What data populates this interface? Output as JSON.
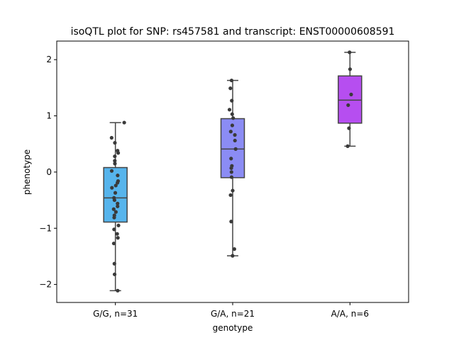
{
  "chart_data": {
    "type": "box",
    "title": "isoQTL plot for SNP: rs457581 and transcript: ENST00000608591",
    "xlabel": "genotype",
    "ylabel": "phenotype",
    "ylim": [
      -2.32,
      2.33
    ],
    "yticks": [
      -2,
      -1,
      0,
      1,
      2
    ],
    "ytick_labels": [
      "−2",
      "−1",
      "0",
      "1",
      "2"
    ],
    "grid": false,
    "groups": [
      {
        "label": "G/G, n=31",
        "color": "#56b4ec",
        "box": {
          "whisker_low": -2.11,
          "q1": -0.89,
          "median": -0.46,
          "q3": 0.08,
          "whisker_high": 0.88
        },
        "points": [
          [
            0.88,
            0.89
          ],
          [
            0.61,
            -0.38
          ],
          [
            0.52,
            -0.05
          ],
          [
            0.38,
            0.22
          ],
          [
            0.34,
            0.28
          ],
          [
            0.28,
            -0.06
          ],
          [
            0.2,
            -0.06
          ],
          [
            0.15,
            -0.05
          ],
          [
            0.02,
            -0.37
          ],
          [
            -0.06,
            0.23
          ],
          [
            -0.16,
            0.27
          ],
          [
            -0.19,
            0.21
          ],
          [
            -0.24,
            0.04
          ],
          [
            -0.28,
            -0.35
          ],
          [
            -0.37,
            -0.01
          ],
          [
            -0.46,
            -0.14
          ],
          [
            -0.5,
            -0.09
          ],
          [
            -0.56,
            0.22
          ],
          [
            -0.61,
            0.22
          ],
          [
            -0.66,
            -0.17
          ],
          [
            -0.71,
            0.05
          ],
          [
            -0.77,
            -0.1
          ],
          [
            -0.81,
            -0.12
          ],
          [
            -0.95,
            0.31
          ],
          [
            -1.02,
            -0.13
          ],
          [
            -1.1,
            0.18
          ],
          [
            -1.17,
            0.25
          ],
          [
            -1.27,
            -0.16
          ],
          [
            -1.63,
            -0.1
          ],
          [
            -1.82,
            -0.08
          ],
          [
            -2.11,
            0.23
          ]
        ]
      },
      {
        "label": "G/A, n=21",
        "color": "#8b8cf4",
        "box": {
          "whisker_low": -1.49,
          "q1": -0.1,
          "median": 0.41,
          "q3": 0.95,
          "whisker_high": 1.63
        },
        "points": [
          [
            1.63,
            -0.11
          ],
          [
            1.49,
            -0.23
          ],
          [
            1.27,
            -0.09
          ],
          [
            1.11,
            -0.32
          ],
          [
            1.03,
            -0.05
          ],
          [
            0.96,
            0.05
          ],
          [
            0.83,
            -0.04
          ],
          [
            0.72,
            -0.19
          ],
          [
            0.66,
            0.22
          ],
          [
            0.56,
            0.23
          ],
          [
            0.41,
            0.3
          ],
          [
            0.24,
            -0.16
          ],
          [
            0.11,
            -0.08
          ],
          [
            0.07,
            -0.14
          ],
          [
            -0.09,
            -0.11
          ],
          [
            -0.33,
            0.0
          ],
          [
            -0.41,
            -0.21
          ],
          [
            -0.88,
            -0.15
          ],
          [
            -1.37,
            0.17
          ],
          [
            -1.49,
            -0.01
          ],
          [
            0.0,
            -0.12
          ]
        ]
      },
      {
        "label": "A/A, n=6",
        "color": "#b64ef0",
        "box": {
          "whisker_low": 0.46,
          "q1": 0.87,
          "median": 1.28,
          "q3": 1.71,
          "whisker_high": 2.13
        },
        "points": [
          [
            2.13,
            -0.04
          ],
          [
            1.83,
            0.01
          ],
          [
            1.38,
            0.12
          ],
          [
            1.19,
            -0.18
          ],
          [
            0.78,
            -0.1
          ],
          [
            0.46,
            -0.23
          ]
        ]
      }
    ]
  }
}
